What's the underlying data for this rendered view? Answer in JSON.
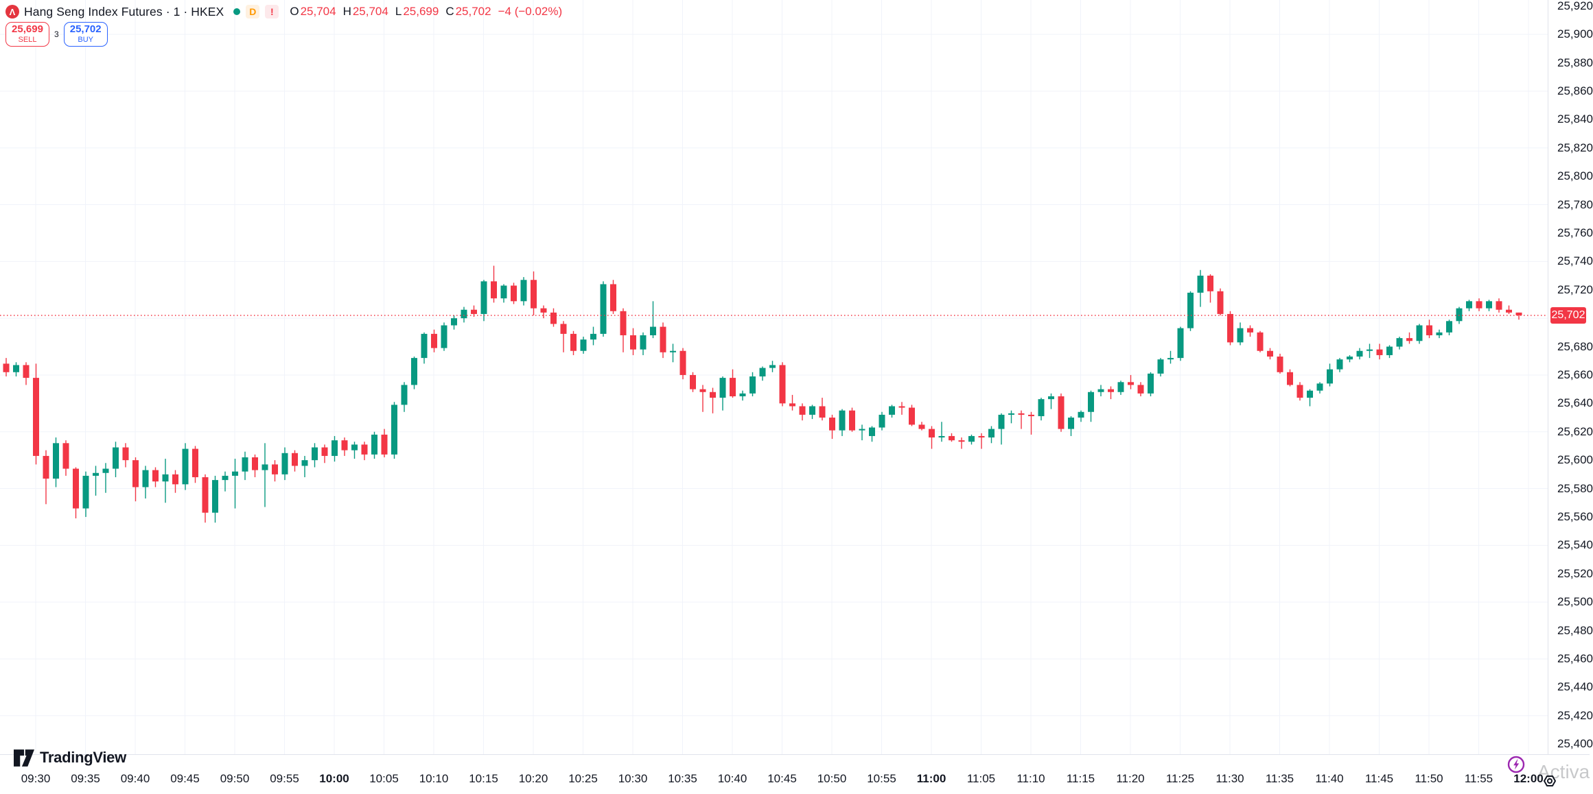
{
  "header": {
    "symbol_logo_glyph": "Λ",
    "symbol_title": "Hang Seng Index Futures · 1 · HKEX",
    "market_status": "open",
    "interval_badge": "D",
    "alert_badge": "!",
    "ohlc": {
      "o_label": "O",
      "o": "25,704",
      "h_label": "H",
      "h": "25,704",
      "l_label": "L",
      "l": "25,699",
      "c_label": "C",
      "c": "25,702",
      "change": "−4 (−0.02%)"
    }
  },
  "order_panel": {
    "sell_price": "25,699",
    "sell_label": "SELL",
    "spread": "3",
    "buy_price": "25,702",
    "buy_label": "BUY"
  },
  "price_scale": {
    "labels": [
      "25,920",
      "25,900",
      "25,880",
      "25,860",
      "25,840",
      "25,820",
      "25,800",
      "25,780",
      "25,760",
      "25,740",
      "25,720",
      "25,680",
      "25,660",
      "25,640",
      "25,620",
      "25,600",
      "25,580",
      "25,560",
      "25,540",
      "25,520",
      "25,500",
      "25,480",
      "25,460",
      "25,440",
      "25,420",
      "25,400"
    ],
    "label_values": [
      25920,
      25900,
      25880,
      25860,
      25840,
      25820,
      25800,
      25780,
      25760,
      25740,
      25720,
      25680,
      25660,
      25640,
      25620,
      25600,
      25580,
      25560,
      25540,
      25520,
      25500,
      25480,
      25460,
      25440,
      25420,
      25400
    ],
    "last_price": "25,702",
    "last_price_value": 25702
  },
  "time_scale": {
    "labels": [
      "09:30",
      "09:35",
      "09:40",
      "09:45",
      "09:50",
      "09:55",
      "10:00",
      "10:05",
      "10:10",
      "10:15",
      "10:20",
      "10:25",
      "10:30",
      "10:35",
      "10:40",
      "10:45",
      "10:50",
      "10:55",
      "11:00",
      "11:05",
      "11:10",
      "11:15",
      "11:20",
      "11:25",
      "11:30",
      "11:35",
      "11:40",
      "11:45",
      "11:50",
      "11:55",
      "12:00"
    ],
    "bold_labels": [
      "10:00",
      "11:00",
      "12:00"
    ]
  },
  "footer": {
    "logo_text": "TradingView"
  },
  "watermark": {
    "line1": "Activa"
  },
  "colors": {
    "up": "#089981",
    "down": "#F23645",
    "buy_blue": "#2962FF",
    "grid": "#F0F3FA",
    "price_line": "#F23645",
    "lightning_purple": "#9C27B0",
    "text": "#131722"
  },
  "chart_data": {
    "type": "candlestick",
    "symbol": "Hang Seng Index Futures",
    "interval_minutes": 1,
    "exchange": "HKEX",
    "y_axis": {
      "min": 25400,
      "max": 25920,
      "tick_step": 20,
      "grid_step": 40,
      "grid_anchor": 25900
    },
    "x_axis": {
      "start": "09:27",
      "end": "11:59",
      "tick_labels_every": "5min"
    },
    "price_line_value": 25702,
    "legend_position": "top-left",
    "grid": true,
    "candles": [
      [
        "09:27",
        25668,
        25672,
        25659,
        25662
      ],
      [
        "09:28",
        25662,
        25669,
        25659,
        25667
      ],
      [
        "09:29",
        25667,
        25669,
        25653,
        25658
      ],
      [
        "09:30",
        25658,
        25668,
        25597,
        25603
      ],
      [
        "09:31",
        25603,
        25607,
        25569,
        25587
      ],
      [
        "09:32",
        25587,
        25616,
        25581,
        25612
      ],
      [
        "09:33",
        25612,
        25614,
        25589,
        25594
      ],
      [
        "09:34",
        25594,
        25595,
        25559,
        25566
      ],
      [
        "09:35",
        25566,
        25592,
        25560,
        25589
      ],
      [
        "09:36",
        25589,
        25596,
        25575,
        25591
      ],
      [
        "09:37",
        25591,
        25598,
        25577,
        25594
      ],
      [
        "09:38",
        25594,
        25613,
        25588,
        25609
      ],
      [
        "09:39",
        25609,
        25612,
        25595,
        25600
      ],
      [
        "09:40",
        25600,
        25602,
        25571,
        25581
      ],
      [
        "09:41",
        25581,
        25596,
        25573,
        25593
      ],
      [
        "09:42",
        25593,
        25595,
        25581,
        25585
      ],
      [
        "09:43",
        25585,
        25601,
        25570,
        25590
      ],
      [
        "09:44",
        25590,
        25593,
        25577,
        25583
      ],
      [
        "09:45",
        25583,
        25612,
        25579,
        25608
      ],
      [
        "09:46",
        25608,
        25610,
        25584,
        25588
      ],
      [
        "09:47",
        25588,
        25590,
        25556,
        25563
      ],
      [
        "09:48",
        25563,
        25589,
        25556,
        25586
      ],
      [
        "09:49",
        25586,
        25592,
        25578,
        25589
      ],
      [
        "09:50",
        25589,
        25601,
        25566,
        25592
      ],
      [
        "09:51",
        25592,
        25606,
        25586,
        25602
      ],
      [
        "09:52",
        25602,
        25604,
        25588,
        25593
      ],
      [
        "09:53",
        25593,
        25612,
        25567,
        25597
      ],
      [
        "09:54",
        25597,
        25600,
        25585,
        25590
      ],
      [
        "09:55",
        25590,
        25609,
        25586,
        25605
      ],
      [
        "09:56",
        25605,
        25607,
        25592,
        25596
      ],
      [
        "09:57",
        25596,
        25603,
        25588,
        25600
      ],
      [
        "09:58",
        25600,
        25612,
        25595,
        25609
      ],
      [
        "09:59",
        25609,
        25611,
        25598,
        25603
      ],
      [
        "10:00",
        25603,
        25617,
        25599,
        25614
      ],
      [
        "10:01",
        25614,
        25616,
        25603,
        25607
      ],
      [
        "10:02",
        25607,
        25613,
        25601,
        25611
      ],
      [
        "10:03",
        25611,
        25613,
        25600,
        25604
      ],
      [
        "10:04",
        25604,
        25620,
        25601,
        25618
      ],
      [
        "10:05",
        25618,
        25622,
        25602,
        25604
      ],
      [
        "10:06",
        25604,
        25641,
        25601,
        25639
      ],
      [
        "10:07",
        25639,
        25655,
        25634,
        25653
      ],
      [
        "10:08",
        25653,
        25673,
        25650,
        25672
      ],
      [
        "10:09",
        25672,
        25690,
        25668,
        25689
      ],
      [
        "10:10",
        25689,
        25692,
        25676,
        25679
      ],
      [
        "10:11",
        25679,
        25697,
        25677,
        25695
      ],
      [
        "10:12",
        25695,
        25702,
        25692,
        25700
      ],
      [
        "10:13",
        25700,
        25708,
        25697,
        25706
      ],
      [
        "10:14",
        25706,
        25709,
        25701,
        25703
      ],
      [
        "10:15",
        25703,
        25727,
        25698,
        25726
      ],
      [
        "10:16",
        25726,
        25737,
        25711,
        25714
      ],
      [
        "10:17",
        25714,
        25724,
        25711,
        25723
      ],
      [
        "10:18",
        25723,
        25725,
        25710,
        25712
      ],
      [
        "10:19",
        25712,
        25729,
        25709,
        25727
      ],
      [
        "10:20",
        25727,
        25733,
        25702,
        25707
      ],
      [
        "10:21",
        25707,
        25709,
        25700,
        25704
      ],
      [
        "10:22",
        25704,
        25707,
        25694,
        25696
      ],
      [
        "10:23",
        25696,
        25698,
        25676,
        25689
      ],
      [
        "10:24",
        25689,
        25691,
        25674,
        25677
      ],
      [
        "10:25",
        25677,
        25687,
        25675,
        25685
      ],
      [
        "10:26",
        25685,
        25694,
        25681,
        25689
      ],
      [
        "10:27",
        25689,
        25726,
        25687,
        25724
      ],
      [
        "10:28",
        25724,
        25727,
        25703,
        25705
      ],
      [
        "10:29",
        25705,
        25707,
        25676,
        25688
      ],
      [
        "10:30",
        25688,
        25693,
        25674,
        25678
      ],
      [
        "10:31",
        25678,
        25690,
        25674,
        25688
      ],
      [
        "10:32",
        25688,
        25712,
        25686,
        25694
      ],
      [
        "10:33",
        25694,
        25697,
        25672,
        25676
      ],
      [
        "10:34",
        25676,
        25682,
        25669,
        25677
      ],
      [
        "10:35",
        25677,
        25679,
        25657,
        25660
      ],
      [
        "10:36",
        25660,
        25662,
        25648,
        25650
      ],
      [
        "10:37",
        25650,
        25653,
        25634,
        25648
      ],
      [
        "10:38",
        25648,
        25651,
        25633,
        25644
      ],
      [
        "10:39",
        25644,
        25659,
        25635,
        25658
      ],
      [
        "10:40",
        25658,
        25664,
        25644,
        25645
      ],
      [
        "10:41",
        25645,
        25649,
        25642,
        25647
      ],
      [
        "10:42",
        25647,
        25662,
        25645,
        25659
      ],
      [
        "10:43",
        25659,
        25666,
        25656,
        25665
      ],
      [
        "10:44",
        25665,
        25670,
        25662,
        25667
      ],
      [
        "10:45",
        25667,
        25669,
        25638,
        25640
      ],
      [
        "10:46",
        25640,
        25646,
        25635,
        25638
      ],
      [
        "10:47",
        25638,
        25640,
        25628,
        25632
      ],
      [
        "10:48",
        25632,
        25639,
        25629,
        25638
      ],
      [
        "10:49",
        25638,
        25644,
        25628,
        25630
      ],
      [
        "10:50",
        25630,
        25632,
        25615,
        25621
      ],
      [
        "10:51",
        25621,
        25636,
        25617,
        25635
      ],
      [
        "10:52",
        25635,
        25637,
        25620,
        25621
      ],
      [
        "10:53",
        25621,
        25625,
        25614,
        25622
      ],
      [
        "10:54",
        25617,
        25624,
        25613,
        25623
      ],
      [
        "10:55",
        25623,
        25634,
        25621,
        25632
      ],
      [
        "10:56",
        25632,
        25639,
        25630,
        25638
      ],
      [
        "10:57",
        25638,
        25641,
        25632,
        25637
      ],
      [
        "10:58",
        25637,
        25639,
        25624,
        25625
      ],
      [
        "10:59",
        25625,
        25627,
        25621,
        25622
      ],
      [
        "11:00",
        25622,
        25624,
        25608,
        25616
      ],
      [
        "11:01",
        25616,
        25627,
        25613,
        25617
      ],
      [
        "11:02",
        25617,
        25619,
        25613,
        25614
      ],
      [
        "11:03",
        25614,
        25616,
        25608,
        25613
      ],
      [
        "11:04",
        25613,
        25618,
        25611,
        25617
      ],
      [
        "11:05",
        25617,
        25619,
        25608,
        25616
      ],
      [
        "11:06",
        25616,
        25624,
        25612,
        25622
      ],
      [
        "11:07",
        25622,
        25633,
        25611,
        25632
      ],
      [
        "11:08",
        25632,
        25635,
        25626,
        25633
      ],
      [
        "11:09",
        25633,
        25635,
        25622,
        25632
      ],
      [
        "11:10",
        25632,
        25634,
        25618,
        25631
      ],
      [
        "11:11",
        25631,
        25644,
        25628,
        25643
      ],
      [
        "11:12",
        25643,
        25647,
        25636,
        25645
      ],
      [
        "11:13",
        25645,
        25647,
        25620,
        25622
      ],
      [
        "11:14",
        25622,
        25631,
        25617,
        25630
      ],
      [
        "11:15",
        25630,
        25635,
        25627,
        25634
      ],
      [
        "11:16",
        25634,
        25649,
        25627,
        25648
      ],
      [
        "11:17",
        25648,
        25653,
        25645,
        25650
      ],
      [
        "11:18",
        25650,
        25652,
        25643,
        25648
      ],
      [
        "11:19",
        25648,
        25656,
        25646,
        25655
      ],
      [
        "11:20",
        25655,
        25660,
        25650,
        25653
      ],
      [
        "11:21",
        25653,
        25655,
        25645,
        25647
      ],
      [
        "11:22",
        25647,
        25662,
        25645,
        25661
      ],
      [
        "11:23",
        25661,
        25672,
        25659,
        25671
      ],
      [
        "11:24",
        25671,
        25677,
        25668,
        25672
      ],
      [
        "11:25",
        25672,
        25694,
        25670,
        25693
      ],
      [
        "11:26",
        25693,
        25719,
        25691,
        25718
      ],
      [
        "11:27",
        25718,
        25734,
        25708,
        25730
      ],
      [
        "11:28",
        25730,
        25731,
        25711,
        25719
      ],
      [
        "11:29",
        25719,
        25721,
        25702,
        25703
      ],
      [
        "11:30",
        25703,
        25705,
        25681,
        25683
      ],
      [
        "11:31",
        25683,
        25697,
        25681,
        25693
      ],
      [
        "11:32",
        25693,
        25695,
        25687,
        25690
      ],
      [
        "11:33",
        25690,
        25691,
        25676,
        25677
      ],
      [
        "11:34",
        25677,
        25679,
        25671,
        25673
      ],
      [
        "11:35",
        25673,
        25675,
        25661,
        25662
      ],
      [
        "11:36",
        25662,
        25664,
        25652,
        25653
      ],
      [
        "11:37",
        25653,
        25655,
        25642,
        25644
      ],
      [
        "11:38",
        25644,
        25650,
        25638,
        25649
      ],
      [
        "11:39",
        25649,
        25655,
        25647,
        25654
      ],
      [
        "11:40",
        25654,
        25668,
        25652,
        25664
      ],
      [
        "11:41",
        25664,
        25672,
        25662,
        25671
      ],
      [
        "11:42",
        25671,
        25674,
        25669,
        25673
      ],
      [
        "11:43",
        25673,
        25679,
        25671,
        25677
      ],
      [
        "11:44",
        25677,
        25682,
        25672,
        25678
      ],
      [
        "11:45",
        25678,
        25682,
        25671,
        25674
      ],
      [
        "11:46",
        25674,
        25681,
        25672,
        25680
      ],
      [
        "11:47",
        25680,
        25687,
        25678,
        25686
      ],
      [
        "11:48",
        25686,
        25690,
        25682,
        25684
      ],
      [
        "11:49",
        25684,
        25696,
        25682,
        25695
      ],
      [
        "11:50",
        25695,
        25699,
        25686,
        25688
      ],
      [
        "11:51",
        25688,
        25692,
        25686,
        25690
      ],
      [
        "11:52",
        25690,
        25699,
        25688,
        25698
      ],
      [
        "11:53",
        25698,
        25708,
        25696,
        25707
      ],
      [
        "11:54",
        25707,
        25713,
        25705,
        25712
      ],
      [
        "11:55",
        25712,
        25714,
        25705,
        25707
      ],
      [
        "11:56",
        25707,
        25713,
        25705,
        25712
      ],
      [
        "11:57",
        25712,
        25714,
        25704,
        25706
      ],
      [
        "11:58",
        25706,
        25709,
        25703,
        25704
      ],
      [
        "11:59",
        25704,
        25704,
        25699,
        25702
      ]
    ]
  }
}
